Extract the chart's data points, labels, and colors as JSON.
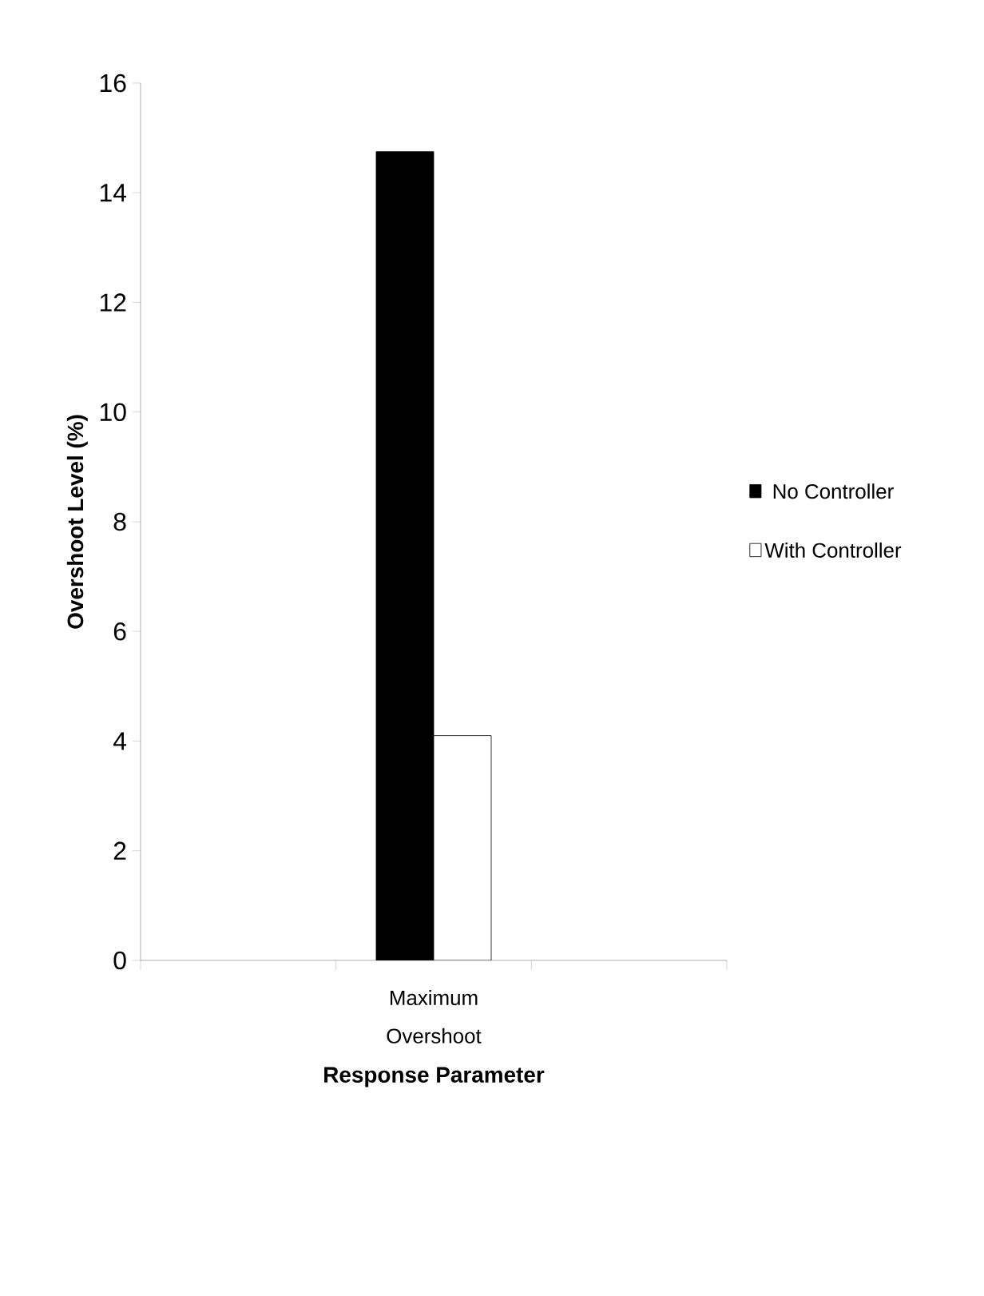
{
  "chart_data": {
    "type": "bar",
    "xlabel": "Response Parameter",
    "ylabel": "Overshoot Level (%)",
    "categories": [
      null,
      "Maximum Overshoot",
      null
    ],
    "series": [
      {
        "name": "No Controller",
        "color": "#000000",
        "values": [
          null,
          14.75,
          null
        ]
      },
      {
        "name": "With Controller",
        "color": "#ffffff",
        "values": [
          null,
          4.1,
          null
        ]
      }
    ],
    "ylim": [
      0,
      16
    ],
    "yticks": [
      0,
      2,
      4,
      6,
      8,
      10,
      12,
      14,
      16
    ],
    "grid": false,
    "legend": "right"
  }
}
